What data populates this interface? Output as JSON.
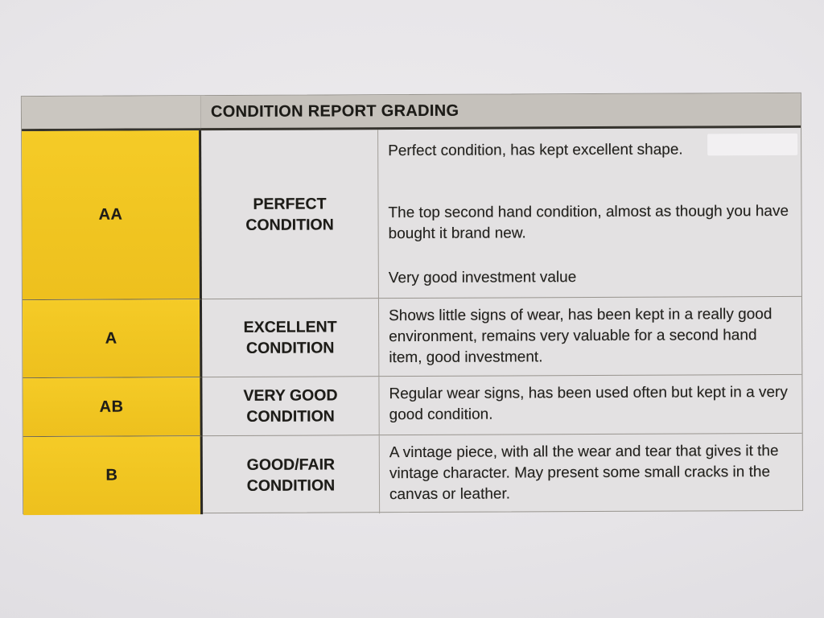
{
  "document": {
    "title": "CONDITION REPORT GRADING"
  },
  "table": {
    "header": "CONDITION REPORT GRADING",
    "columns": [
      "grade",
      "condition_name",
      "description"
    ],
    "rows": [
      {
        "grade": "AA",
        "condition": "PERFECT CONDITION",
        "description_paragraphs": [
          "Perfect condition, has kept excellent shape.",
          "The top second hand condition, almost as though you have bought it brand new.",
          "Very good investment value"
        ]
      },
      {
        "grade": "A",
        "condition": "EXCELLENT CONDITION",
        "description_paragraphs": [
          "Shows little signs of wear, has been kept in a really good environment, remains very valuable for a second hand item, good investment."
        ]
      },
      {
        "grade": "AB",
        "condition": "VERY GOOD CONDITION",
        "description_paragraphs": [
          "Regular wear signs, has been used often but kept in a very good condition."
        ]
      },
      {
        "grade": "B",
        "condition": "GOOD/FAIR CONDITION",
        "description_paragraphs": [
          "A vintage piece, with all the wear and tear that gives it the vintage character. May present some small cracks in the canvas or leather."
        ]
      }
    ]
  },
  "colors": {
    "grade_cell_yellow": "#F0C521",
    "header_gray": "#C5C1BB",
    "paper_background": "#E6E4E7",
    "cell_background": "#E3E1E2",
    "text": "#23221E",
    "heavy_border": "#2A2822",
    "light_border": "#98948E"
  }
}
